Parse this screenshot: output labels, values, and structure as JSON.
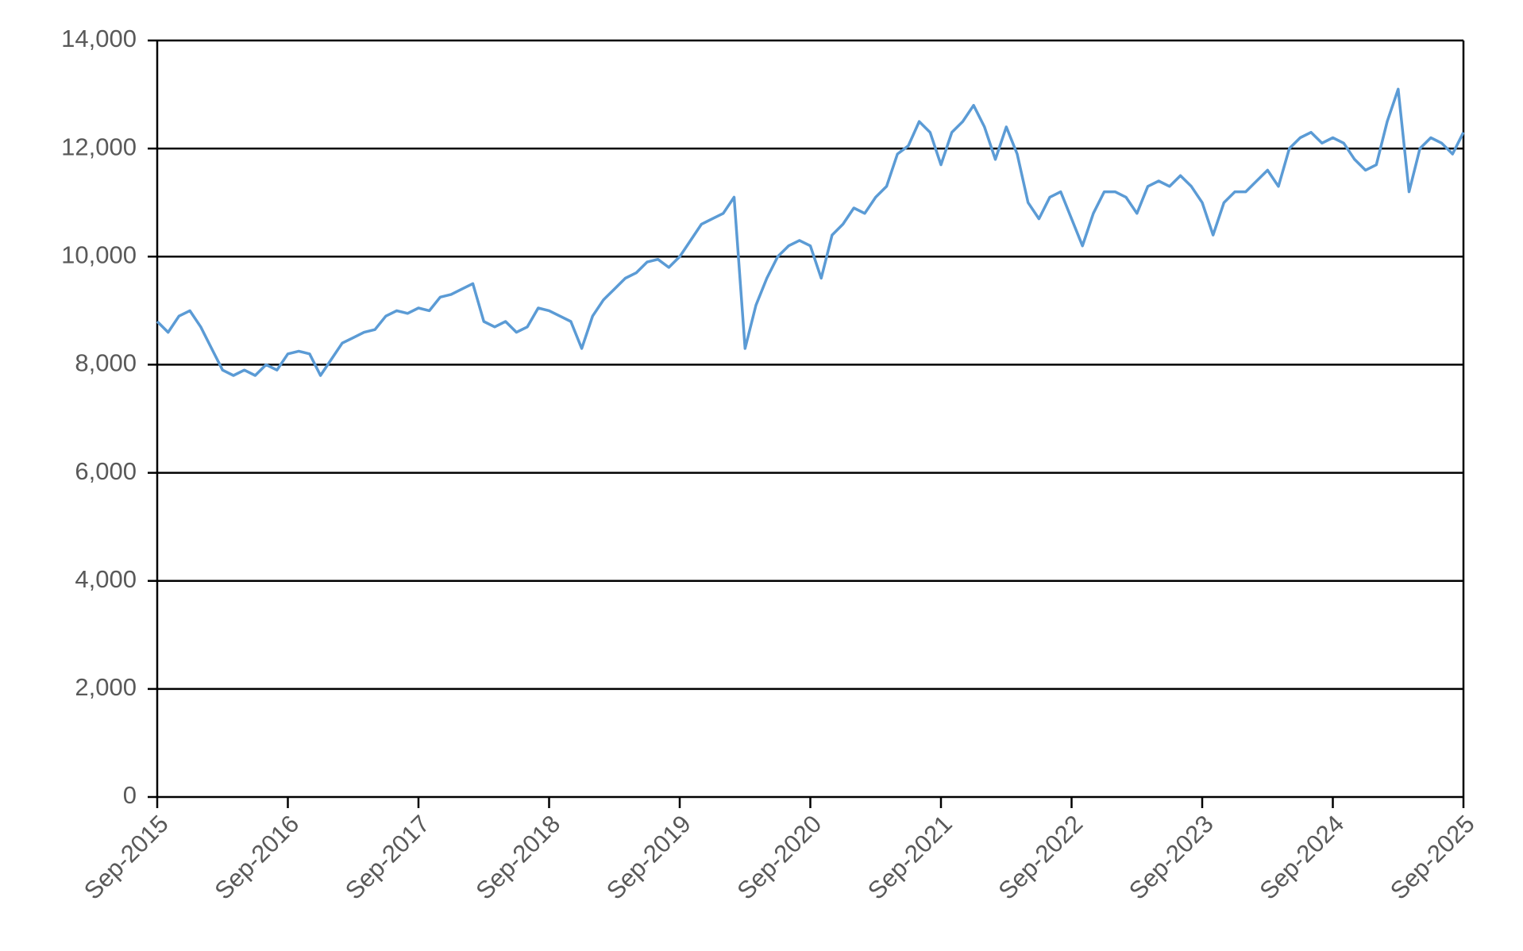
{
  "chart_data": {
    "type": "line",
    "x": [
      "2015-09",
      "2015-10",
      "2015-11",
      "2015-12",
      "2016-01",
      "2016-02",
      "2016-03",
      "2016-04",
      "2016-05",
      "2016-06",
      "2016-07",
      "2016-08",
      "2016-09",
      "2016-10",
      "2016-11",
      "2016-12",
      "2017-01",
      "2017-02",
      "2017-03",
      "2017-04",
      "2017-05",
      "2017-06",
      "2017-07",
      "2017-08",
      "2017-09",
      "2017-10",
      "2017-11",
      "2017-12",
      "2018-01",
      "2018-02",
      "2018-03",
      "2018-04",
      "2018-05",
      "2018-06",
      "2018-07",
      "2018-08",
      "2018-09",
      "2018-10",
      "2018-11",
      "2018-12",
      "2019-01",
      "2019-02",
      "2019-03",
      "2019-04",
      "2019-05",
      "2019-06",
      "2019-07",
      "2019-08",
      "2019-09",
      "2019-10",
      "2019-11",
      "2019-12",
      "2020-01",
      "2020-02",
      "2020-03",
      "2020-04",
      "2020-05",
      "2020-06",
      "2020-07",
      "2020-08",
      "2020-09",
      "2020-10",
      "2020-11",
      "2020-12",
      "2021-01",
      "2021-02",
      "2021-03",
      "2021-04",
      "2021-05",
      "2021-06",
      "2021-07",
      "2021-08",
      "2021-09",
      "2021-10",
      "2021-11",
      "2021-12",
      "2022-01",
      "2022-02",
      "2022-03",
      "2022-04",
      "2022-05",
      "2022-06",
      "2022-07",
      "2022-08",
      "2022-09",
      "2022-10",
      "2022-11",
      "2022-12",
      "2023-01",
      "2023-02",
      "2023-03",
      "2023-04",
      "2023-05",
      "2023-06",
      "2023-07",
      "2023-08",
      "2023-09",
      "2023-10",
      "2023-11",
      "2023-12",
      "2024-01",
      "2024-02",
      "2024-03",
      "2024-04",
      "2024-05",
      "2024-06",
      "2024-07",
      "2024-08",
      "2024-09",
      "2024-10",
      "2024-11",
      "2024-12",
      "2025-01",
      "2025-02",
      "2025-03",
      "2025-04",
      "2025-05",
      "2025-06",
      "2025-07",
      "2025-08",
      "2025-09"
    ],
    "series": [
      {
        "color": "#5b9bd5",
        "values": [
          8800,
          8600,
          8900,
          9000,
          8700,
          8300,
          7900,
          7800,
          7900,
          7800,
          8000,
          7900,
          8200,
          8250,
          8200,
          7800,
          8100,
          8400,
          8500,
          8600,
          8650,
          8900,
          9000,
          8950,
          9050,
          9000,
          9250,
          9300,
          9400,
          9500,
          8800,
          8700,
          8800,
          8600,
          8700,
          9050,
          9000,
          8900,
          8800,
          8300,
          8900,
          9200,
          9400,
          9600,
          9700,
          9900,
          9950,
          9800,
          10000,
          10300,
          10600,
          10700,
          10800,
          11100,
          8300,
          9100,
          9600,
          10000,
          10200,
          10300,
          10200,
          9600,
          10400,
          10600,
          10900,
          10800,
          11100,
          11300,
          11900,
          12050,
          12500,
          12300,
          11700,
          12300,
          12500,
          12800,
          12400,
          11800,
          12400,
          11900,
          11000,
          10700,
          11100,
          11200,
          10700,
          10200,
          10800,
          11200,
          11200,
          11100,
          10800,
          11300,
          11400,
          11300,
          11500,
          11300,
          11000,
          10400,
          11000,
          11200,
          11200,
          11400,
          11600,
          11300,
          12000,
          12200,
          12300,
          12100,
          12200,
          12100,
          11800,
          11600,
          11700,
          12500,
          13100,
          11200,
          12000,
          12200,
          12100,
          11900,
          12300
        ]
      }
    ],
    "xlim": [
      "2015-09",
      "2025-09"
    ],
    "xticks": [
      {
        "value": "2015-09",
        "label": "Sep-2015"
      },
      {
        "value": "2016-09",
        "label": "Sep-2016"
      },
      {
        "value": "2017-09",
        "label": "Sep-2017"
      },
      {
        "value": "2018-09",
        "label": "Sep-2018"
      },
      {
        "value": "2019-09",
        "label": "Sep-2019"
      },
      {
        "value": "2020-09",
        "label": "Sep-2020"
      },
      {
        "value": "2021-09",
        "label": "Sep-2021"
      },
      {
        "value": "2022-09",
        "label": "Sep-2022"
      },
      {
        "value": "2023-09",
        "label": "Sep-2023"
      },
      {
        "value": "2024-09",
        "label": "Sep-2024"
      },
      {
        "value": "2025-09",
        "label": "Sep-2025"
      }
    ],
    "ylim": [
      0,
      14000
    ],
    "yticks": [
      0,
      {
        "value": 2000,
        "label": "2,000"
      },
      {
        "value": 4000,
        "label": "4,000"
      },
      {
        "value": 6000,
        "label": "6,000"
      },
      {
        "value": 8000,
        "label": "8,000"
      },
      {
        "value": 10000,
        "label": "10,000"
      },
      {
        "value": 12000,
        "label": "12,000"
      },
      {
        "value": 14000,
        "label": "14,000"
      }
    ],
    "grid": true
  }
}
